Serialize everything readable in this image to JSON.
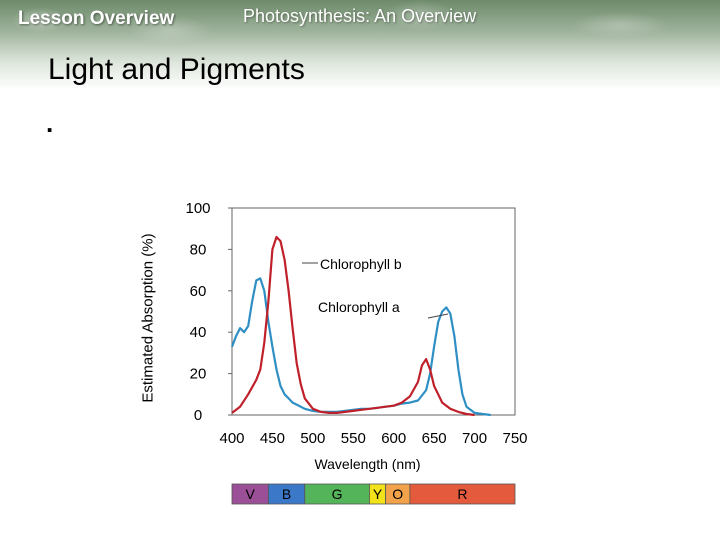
{
  "header": {
    "section_label": "Lesson Overview",
    "deck_title": "Photosynthesis: An Overview"
  },
  "slide": {
    "title": "Light and Pigments",
    "bullet": "."
  },
  "colors": {
    "chlorophyll_a": "#2f8fc4",
    "chlorophyll_b": "#c0202a",
    "plot_border": "#666666"
  },
  "chart_data": {
    "type": "line",
    "title": "",
    "xlabel": "Wavelength (nm)",
    "ylabel": "Estimated Absorption (%)",
    "xlim": [
      400,
      750
    ],
    "ylim": [
      0,
      100
    ],
    "xticks": [
      400,
      450,
      500,
      550,
      600,
      650,
      700,
      750
    ],
    "yticks": [
      0,
      20,
      40,
      60,
      80,
      100
    ],
    "grid": false,
    "series": [
      {
        "name": "Chlorophyll a",
        "color": "#2f8fc4",
        "x": [
          400,
          405,
          410,
          415,
          420,
          425,
          430,
          435,
          440,
          445,
          450,
          455,
          460,
          465,
          470,
          475,
          480,
          490,
          500,
          510,
          520,
          530,
          540,
          550,
          560,
          570,
          580,
          590,
          600,
          610,
          620,
          630,
          640,
          645,
          650,
          655,
          660,
          665,
          670,
          675,
          680,
          685,
          690,
          700,
          710,
          720
        ],
        "y": [
          33,
          38,
          42,
          40,
          43,
          55,
          65,
          66,
          60,
          45,
          33,
          22,
          14,
          10,
          8,
          6,
          5,
          3,
          2,
          1.5,
          1.5,
          1.5,
          2,
          2.5,
          3,
          3,
          3.5,
          4,
          4.5,
          5.5,
          6,
          7,
          12,
          20,
          33,
          45,
          50,
          52,
          49,
          38,
          22,
          10,
          4,
          1,
          0.5,
          0
        ]
      },
      {
        "name": "Chlorophyll b",
        "color": "#c0202a",
        "x": [
          400,
          410,
          420,
          430,
          435,
          440,
          445,
          450,
          455,
          460,
          465,
          470,
          475,
          480,
          485,
          490,
          500,
          510,
          520,
          530,
          540,
          550,
          560,
          570,
          580,
          590,
          600,
          610,
          620,
          630,
          635,
          640,
          645,
          650,
          655,
          660,
          670,
          680,
          690,
          700
        ],
        "y": [
          1,
          4,
          10,
          17,
          22,
          35,
          55,
          80,
          86,
          84,
          75,
          60,
          42,
          25,
          15,
          8,
          3,
          1.5,
          1,
          1,
          1.5,
          2,
          2.5,
          3,
          3.5,
          4,
          4.5,
          6,
          9,
          16,
          24,
          27,
          22,
          14,
          10,
          6,
          3,
          1.5,
          0.5,
          0
        ]
      }
    ],
    "spectrum_bands": [
      {
        "label": "V",
        "start": 400,
        "end": 445,
        "color": "#9b4f96"
      },
      {
        "label": "B",
        "start": 445,
        "end": 490,
        "color": "#3b78c8"
      },
      {
        "label": "G",
        "start": 490,
        "end": 570,
        "color": "#54b45a"
      },
      {
        "label": "Y",
        "start": 570,
        "end": 590,
        "color": "#f2e21a"
      },
      {
        "label": "O",
        "start": 590,
        "end": 620,
        "color": "#f2a24a"
      },
      {
        "label": "R",
        "start": 620,
        "end": 750,
        "color": "#e45a3c"
      }
    ]
  }
}
